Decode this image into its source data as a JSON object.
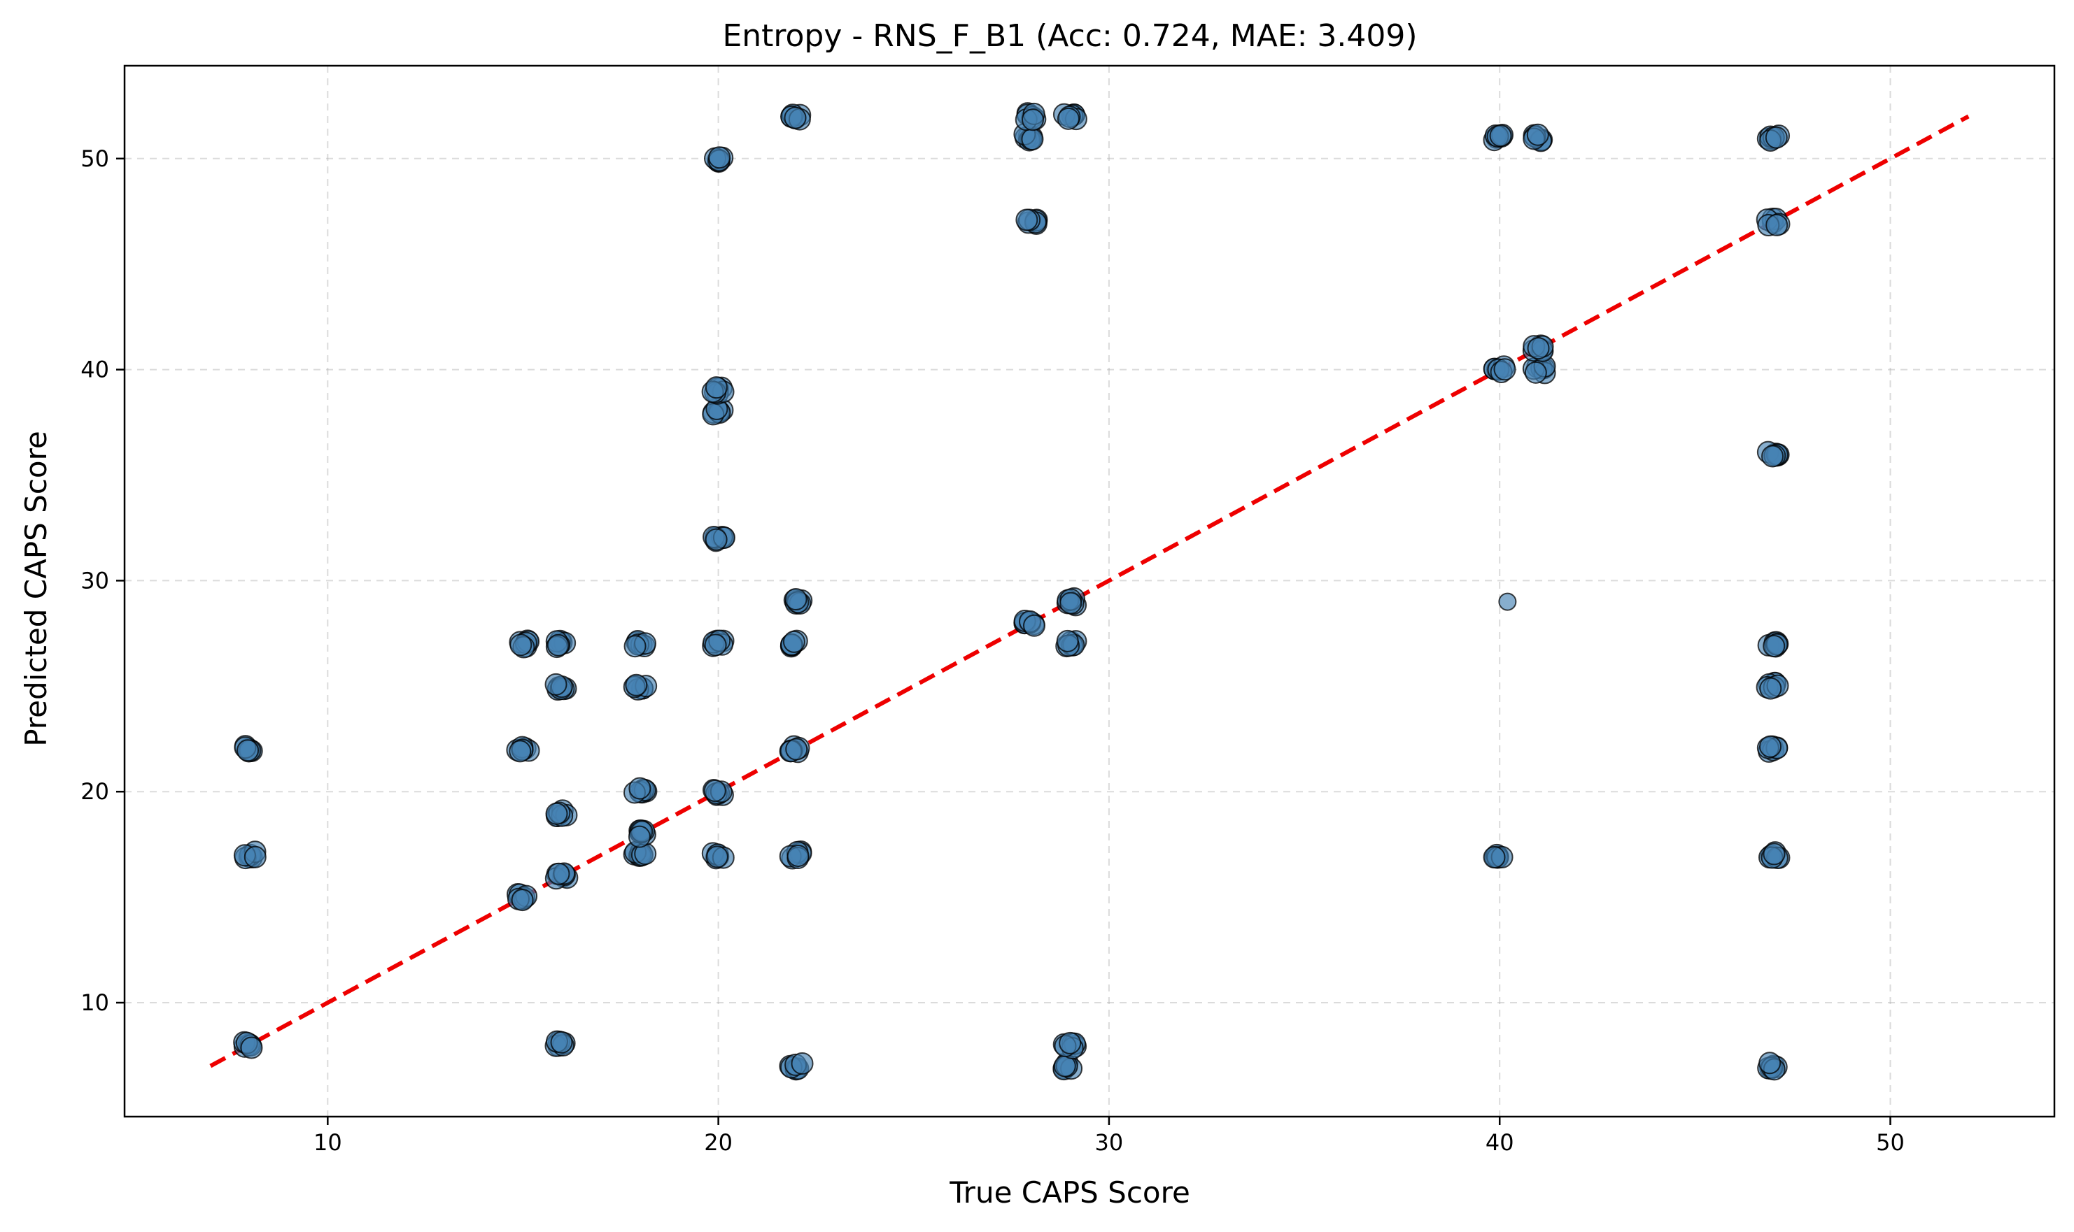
{
  "chart_data": {
    "type": "scatter",
    "title": "Entropy - RNS_F_B1 (Acc: 0.724, MAE: 3.409)",
    "xlabel": "True CAPS Score",
    "ylabel": "Predicted CAPS Score",
    "xlim": [
      4.8,
      54.2
    ],
    "ylim": [
      4.6,
      54.4
    ],
    "xticks": [
      10,
      20,
      30,
      40,
      50
    ],
    "yticks": [
      10,
      20,
      30,
      40,
      50
    ],
    "grid": true,
    "reference_line": {
      "x": [
        7,
        52
      ],
      "y": [
        7,
        52
      ],
      "color": "#ee0000",
      "style": "dashed"
    },
    "marker_color": "#4682b4",
    "points": [
      [
        8,
        8
      ],
      [
        8,
        17
      ],
      [
        8,
        22
      ],
      [
        15,
        15
      ],
      [
        15,
        22
      ],
      [
        15,
        27
      ],
      [
        16,
        8
      ],
      [
        16,
        16
      ],
      [
        16,
        19
      ],
      [
        16,
        25
      ],
      [
        16,
        27
      ],
      [
        18,
        17
      ],
      [
        18,
        18
      ],
      [
        18,
        20
      ],
      [
        18,
        25
      ],
      [
        18,
        27
      ],
      [
        20,
        17
      ],
      [
        20,
        20
      ],
      [
        20,
        27
      ],
      [
        20,
        32
      ],
      [
        20,
        38
      ],
      [
        20,
        39
      ],
      [
        20,
        50
      ],
      [
        22,
        7
      ],
      [
        22,
        17
      ],
      [
        22,
        22
      ],
      [
        22,
        27
      ],
      [
        22,
        29
      ],
      [
        22,
        52
      ],
      [
        28,
        28
      ],
      [
        28,
        47
      ],
      [
        28,
        51
      ],
      [
        28,
        52
      ],
      [
        29,
        7
      ],
      [
        29,
        8
      ],
      [
        29,
        27
      ],
      [
        29,
        29
      ],
      [
        29,
        52
      ],
      [
        40,
        17
      ],
      [
        40.2,
        29
      ],
      [
        40,
        40
      ],
      [
        40,
        51
      ],
      [
        41,
        40
      ],
      [
        41,
        41
      ],
      [
        41,
        51
      ],
      [
        47,
        7
      ],
      [
        47,
        17
      ],
      [
        47,
        22
      ],
      [
        47,
        25
      ],
      [
        47,
        27
      ],
      [
        47,
        36
      ],
      [
        47,
        47
      ],
      [
        47,
        51
      ]
    ]
  }
}
